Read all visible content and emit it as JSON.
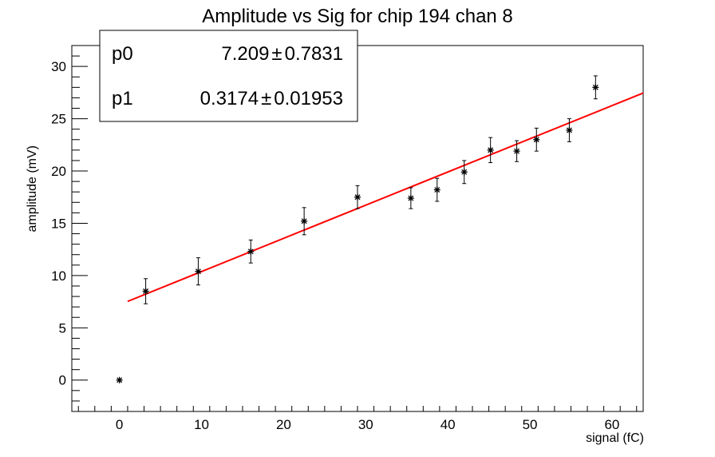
{
  "chart_data": {
    "type": "scatter",
    "title": "Amplitude vs Sig for chip 194 chan 8",
    "xlabel": "signal (fC)",
    "ylabel": "amplitude (mV)",
    "xlim": [
      -5.8,
      63.8
    ],
    "ylim": [
      -3,
      32
    ],
    "x_ticks": [
      0,
      10,
      20,
      30,
      40,
      50,
      60
    ],
    "y_ticks": [
      0,
      5,
      10,
      15,
      20,
      25,
      30
    ],
    "grid": false,
    "points": [
      {
        "x": 0.0,
        "y": 0.0,
        "err": 0.0
      },
      {
        "x": 3.2,
        "y": 8.5,
        "err": 1.2
      },
      {
        "x": 9.6,
        "y": 10.4,
        "err": 1.3
      },
      {
        "x": 16.0,
        "y": 12.3,
        "err": 1.1
      },
      {
        "x": 22.5,
        "y": 15.2,
        "err": 1.3
      },
      {
        "x": 29.0,
        "y": 17.5,
        "err": 1.1
      },
      {
        "x": 35.5,
        "y": 17.4,
        "err": 1.0
      },
      {
        "x": 38.7,
        "y": 18.2,
        "err": 1.1
      },
      {
        "x": 42.0,
        "y": 19.9,
        "err": 1.1
      },
      {
        "x": 45.2,
        "y": 22.0,
        "err": 1.2
      },
      {
        "x": 48.4,
        "y": 21.9,
        "err": 1.0
      },
      {
        "x": 50.8,
        "y": 23.0,
        "err": 1.1
      },
      {
        "x": 54.8,
        "y": 23.9,
        "err": 1.1
      },
      {
        "x": 58.0,
        "y": 28.0,
        "err": 1.1
      }
    ],
    "fit": {
      "x_range": [
        1.0,
        63.8
      ],
      "p0": 7.209,
      "p1": 0.3174,
      "color": "#ff0000"
    },
    "marker_color": "#000000",
    "stats_box": {
      "position": "top-left",
      "rows": [
        {
          "name": "p0",
          "value": "7.209",
          "pm": "±",
          "error": "0.7831"
        },
        {
          "name": "p1",
          "value": "0.3174",
          "pm": "±",
          "error": "0.01953"
        }
      ]
    }
  }
}
